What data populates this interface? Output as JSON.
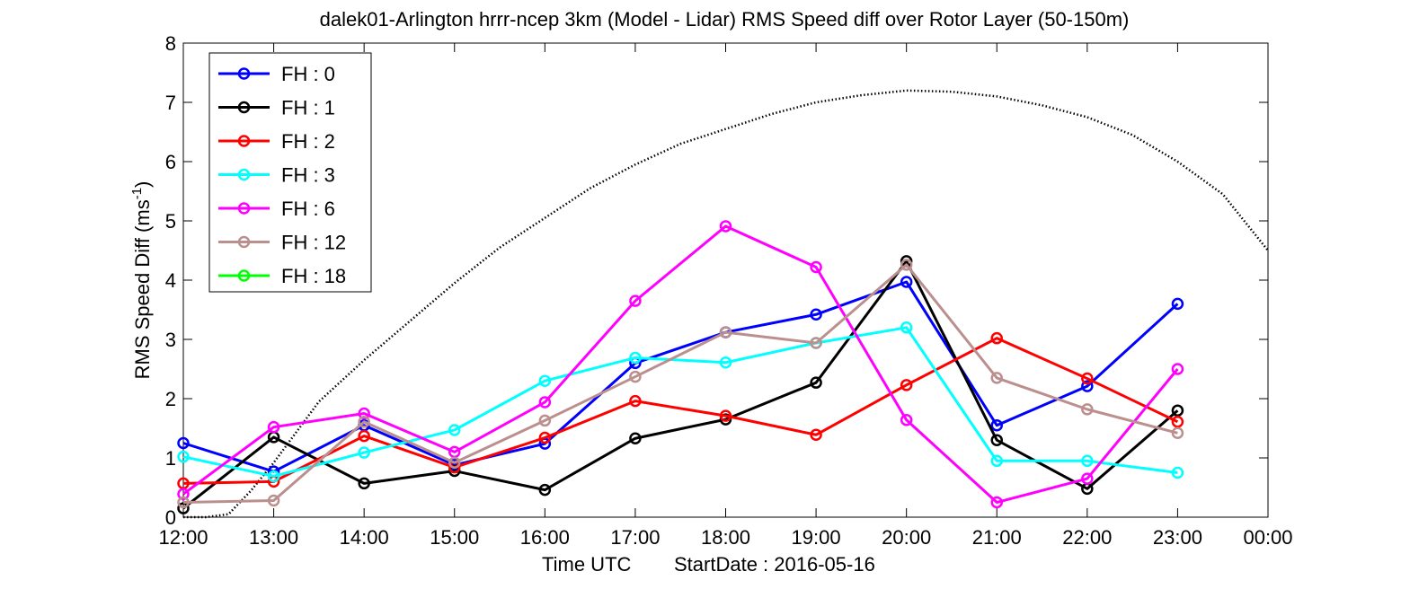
{
  "chart_data": {
    "type": "line",
    "title": "dalek01-Arlington hrrr-ncep 3km (Model - Lidar) RMS Speed diff over Rotor Layer (50-150m)",
    "xlabel": "Time UTC",
    "xlabel_note": "StartDate : 2016-05-16",
    "ylabel_main": "RMS Speed Diff (ms",
    "ylabel_sup": "-1",
    "ylabel_close": ")",
    "ylim": [
      0,
      8
    ],
    "yticks": [
      "0",
      "1",
      "2",
      "3",
      "4",
      "5",
      "6",
      "7",
      "8"
    ],
    "xticks": [
      "12:00",
      "13:00",
      "14:00",
      "15:00",
      "16:00",
      "17:00",
      "18:00",
      "19:00",
      "20:00",
      "21:00",
      "22:00",
      "23:00",
      "00:00"
    ],
    "grid": false,
    "legend_position": "top-left",
    "series": [
      {
        "name": "FH : 0",
        "color": "#0000ff",
        "values": [
          1.25,
          0.77,
          1.55,
          0.88,
          1.24,
          2.6,
          3.12,
          3.42,
          3.97,
          1.55,
          2.21,
          3.6
        ]
      },
      {
        "name": "FH : 1",
        "color": "#000000",
        "values": [
          0.15,
          1.35,
          0.57,
          0.78,
          0.46,
          1.33,
          1.65,
          2.27,
          4.32,
          1.3,
          0.48,
          1.8
        ]
      },
      {
        "name": "FH : 2",
        "color": "#ff0000",
        "values": [
          0.57,
          0.6,
          1.37,
          0.84,
          1.34,
          1.96,
          1.71,
          1.39,
          2.23,
          3.02,
          2.34,
          1.61
        ]
      },
      {
        "name": "FH : 3",
        "color": "#00ffff",
        "values": [
          1.02,
          0.69,
          1.09,
          1.47,
          2.3,
          2.69,
          2.61,
          2.94,
          3.2,
          0.95,
          0.95,
          0.75
        ]
      },
      {
        "name": "FH : 6",
        "color": "#ff00ff",
        "values": [
          0.39,
          1.52,
          1.75,
          1.1,
          1.94,
          3.65,
          4.91,
          4.22,
          1.64,
          0.25,
          0.65,
          2.5
        ]
      },
      {
        "name": "FH : 12",
        "color": "#bc8f8f",
        "values": [
          0.25,
          0.28,
          1.61,
          0.92,
          1.63,
          2.37,
          3.12,
          2.94,
          4.26,
          2.35,
          1.82,
          1.42
        ]
      },
      {
        "name": "FH : 18",
        "color": "#00ff00",
        "values": []
      }
    ],
    "reference_curve": {
      "style": "dotted",
      "color": "#000000",
      "x": [
        0.0,
        0.25,
        0.5,
        0.75,
        1.0,
        1.5,
        2.0,
        2.5,
        3.0,
        3.5,
        4.0,
        4.5,
        5.0,
        5.5,
        6.0,
        6.5,
        7.0,
        7.5,
        8.0,
        8.5,
        9.0,
        9.5,
        10.0,
        10.5,
        11.0,
        11.5,
        12.0
      ],
      "y": [
        0.0,
        0.0,
        0.05,
        0.45,
        0.92,
        1.95,
        2.65,
        3.3,
        3.95,
        4.55,
        5.05,
        5.55,
        5.95,
        6.3,
        6.55,
        6.8,
        7.0,
        7.12,
        7.2,
        7.18,
        7.1,
        6.95,
        6.75,
        6.45,
        6.0,
        5.45,
        4.5
      ]
    }
  }
}
